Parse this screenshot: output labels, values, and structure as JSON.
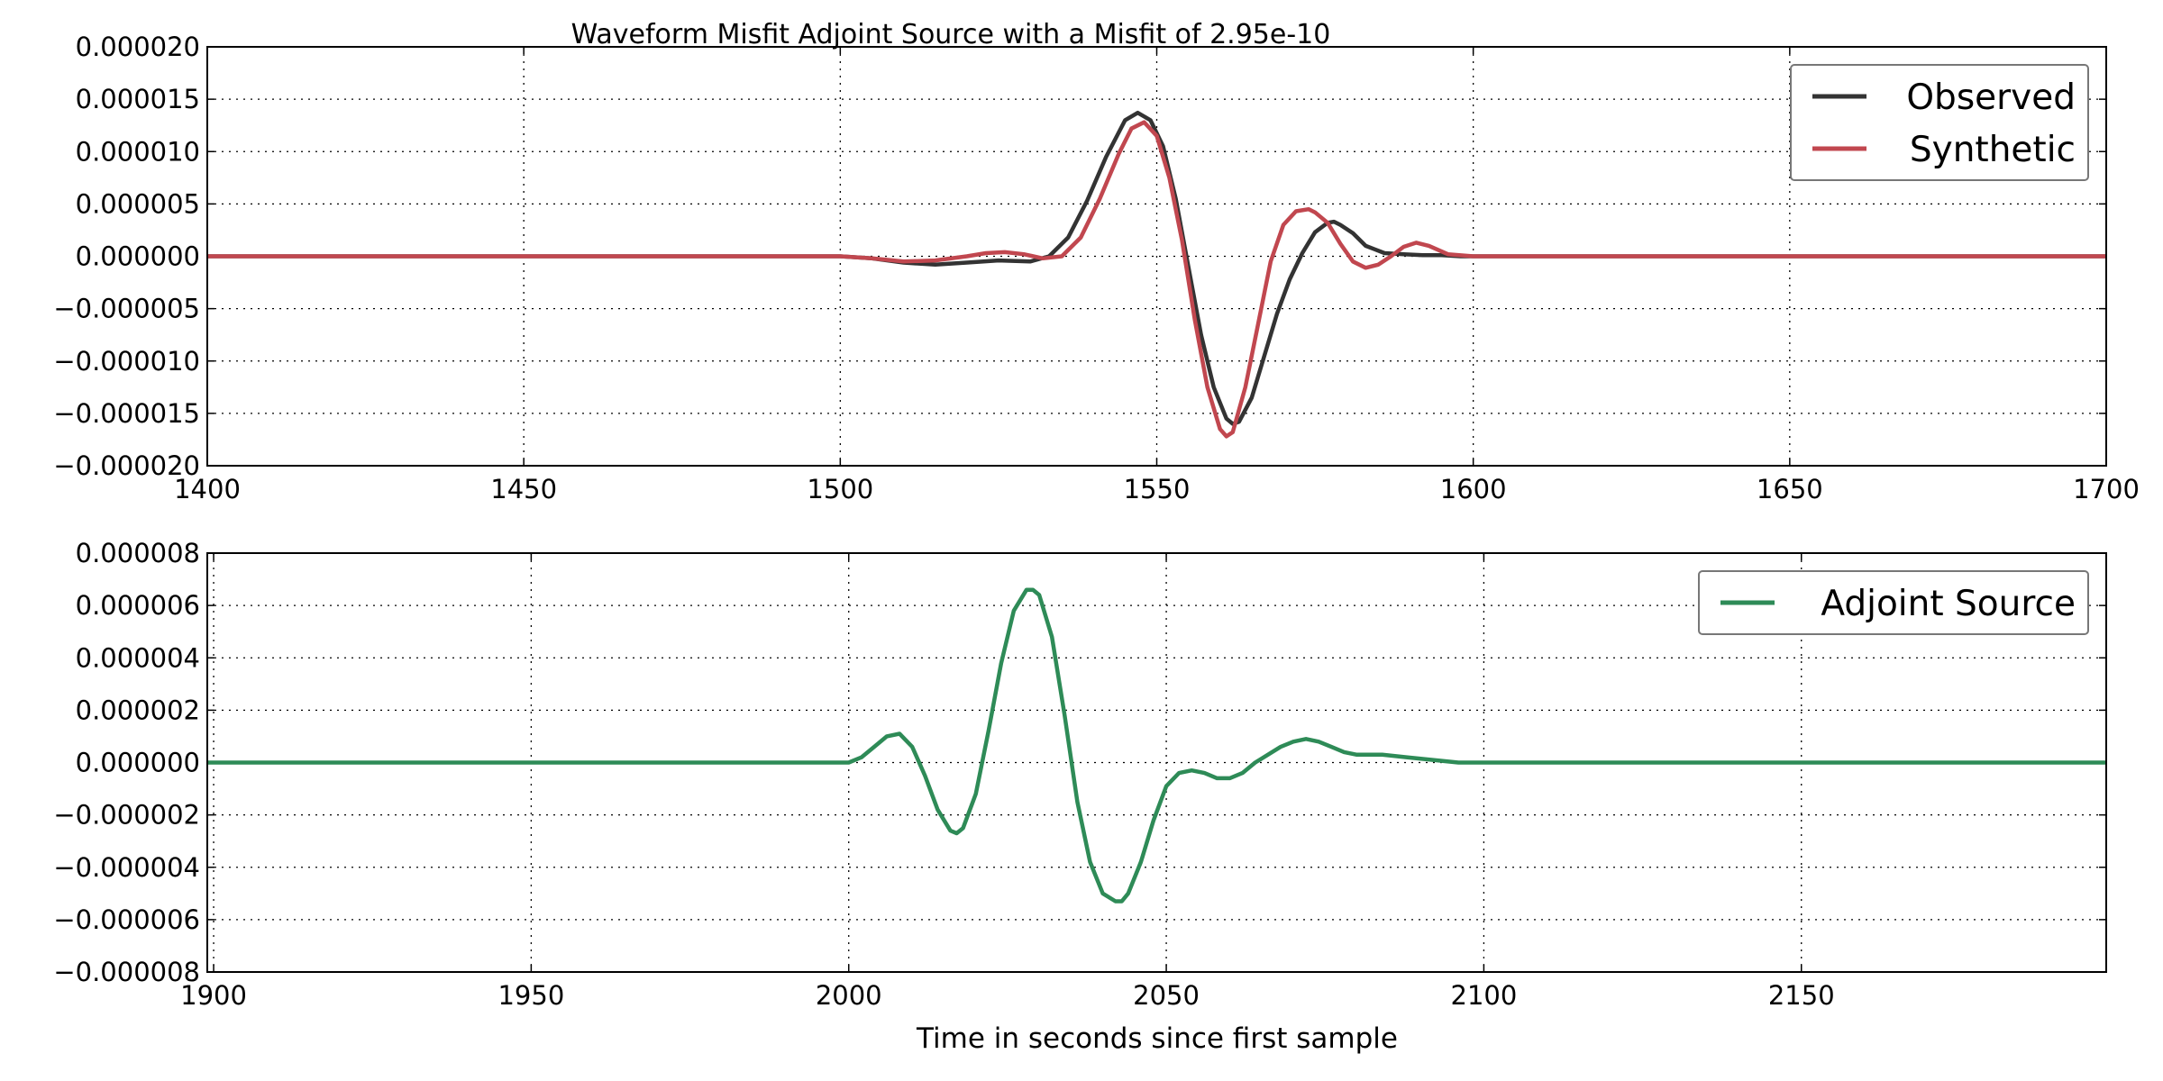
{
  "title": "Waveform Misfit Adjoint Source with a Misfit of 2.95e-10",
  "chart_data": [
    {
      "type": "line",
      "title": "Waveform Misfit Adjoint Source with a Misfit of 2.95e-10",
      "xlabel": "",
      "ylabel": "",
      "xlim": [
        1400,
        1700
      ],
      "ylim": [
        -2e-05,
        2e-05
      ],
      "grid": true,
      "legend_position": "top-right",
      "xticks": [
        1400,
        1450,
        1500,
        1550,
        1600,
        1650,
        1700
      ],
      "xtick_labels": [
        "1400",
        "1450",
        "1500",
        "1550",
        "1600",
        "1650",
        "1700"
      ],
      "yticks": [
        2e-05,
        1.5e-05,
        1e-05,
        5e-06,
        0,
        -5e-06,
        -1e-05,
        -1.5e-05,
        -2e-05
      ],
      "ytick_labels": [
        "0.000020",
        "0.000015",
        "0.000010",
        "0.000005",
        "0.000000",
        "−0.000005",
        "−0.000010",
        "−0.000015",
        "−0.000020"
      ],
      "series": [
        {
          "name": "Observed",
          "color": "#333333",
          "x": [
            1400,
            1500,
            1505,
            1510,
            1515,
            1520,
            1525,
            1530,
            1533,
            1536,
            1539,
            1542,
            1545,
            1547,
            1549,
            1551,
            1553,
            1555,
            1557,
            1559,
            1561,
            1562,
            1563,
            1565,
            1567,
            1569,
            1571,
            1573,
            1575,
            1577,
            1578,
            1579,
            1581,
            1583,
            1586,
            1589,
            1592,
            1595,
            1598,
            1600,
            1700
          ],
          "y": [
            0,
            0,
            -2e-07,
            -6e-07,
            -8e-07,
            -6e-07,
            -4e-07,
            -5e-07,
            0,
            1.8e-06,
            5.3e-06,
            9.5e-06,
            1.3e-05,
            1.37e-05,
            1.3e-05,
            1.05e-05,
            5.5e-06,
            -1e-06,
            -7.5e-06,
            -1.25e-05,
            -1.55e-05,
            -1.6e-05,
            -1.58e-05,
            -1.35e-05,
            -9.5e-06,
            -5.5e-06,
            -2.2e-06,
            3e-07,
            2.3e-06,
            3.2e-06,
            3.3e-06,
            3e-06,
            2.2e-06,
            1e-06,
            3e-07,
            2e-07,
            1e-07,
            1e-07,
            0,
            0,
            0
          ]
        },
        {
          "name": "Synthetic",
          "color": "#c1474f",
          "x": [
            1400,
            1500,
            1505,
            1510,
            1515,
            1520,
            1523,
            1526,
            1529,
            1532,
            1535,
            1538,
            1541,
            1544,
            1546,
            1548,
            1550,
            1552,
            1554,
            1556,
            1558,
            1560,
            1561,
            1562,
            1564,
            1566,
            1568,
            1570,
            1572,
            1574,
            1575,
            1577,
            1579,
            1581,
            1583,
            1585,
            1587,
            1589,
            1591,
            1593,
            1596,
            1600,
            1700
          ],
          "y": [
            0,
            0,
            -2e-07,
            -5e-07,
            -4e-07,
            0,
            3e-07,
            4e-07,
            2e-07,
            -2e-07,
            0,
            1.8e-06,
            5.5e-06,
            9.8e-06,
            1.22e-05,
            1.28e-05,
            1.15e-05,
            7.5e-06,
            1.5e-06,
            -6e-06,
            -1.25e-05,
            -1.65e-05,
            -1.72e-05,
            -1.68e-05,
            -1.25e-05,
            -6.5e-06,
            -5e-07,
            3e-06,
            4.3e-06,
            4.5e-06,
            4.2e-06,
            3.2e-06,
            1.2e-06,
            -5e-07,
            -1.1e-06,
            -8e-07,
            0,
            9e-07,
            1.3e-06,
            1e-06,
            2e-07,
            0,
            0
          ]
        }
      ]
    },
    {
      "type": "line",
      "title": "",
      "xlabel": "Time in seconds since first sample",
      "ylabel": "",
      "xlim": [
        1899,
        2198
      ],
      "ylim": [
        -8e-06,
        8e-06
      ],
      "grid": true,
      "legend_position": "top-right",
      "xticks": [
        1900,
        1950,
        2000,
        2050,
        2100,
        2150
      ],
      "xtick_labels": [
        "1900",
        "1950",
        "2000",
        "2050",
        "2100",
        "2150"
      ],
      "yticks": [
        8e-06,
        6e-06,
        4e-06,
        2e-06,
        0,
        -2e-06,
        -4e-06,
        -6e-06,
        -8e-06
      ],
      "ytick_labels": [
        "0.000008",
        "0.000006",
        "0.000004",
        "0.000002",
        "0.000000",
        "−0.000002",
        "−0.000004",
        "−0.000006",
        "−0.000008"
      ],
      "series": [
        {
          "name": "Adjoint Source",
          "color": "#2e8b57",
          "x": [
            1899,
            2000,
            2002,
            2004,
            2006,
            2008,
            2010,
            2012,
            2014,
            2016,
            2017,
            2018,
            2020,
            2022,
            2024,
            2026,
            2028,
            2029,
            2030,
            2032,
            2034,
            2036,
            2038,
            2040,
            2042,
            2043,
            2044,
            2046,
            2048,
            2050,
            2052,
            2054,
            2056,
            2058,
            2060,
            2062,
            2064,
            2066,
            2068,
            2070,
            2072,
            2074,
            2076,
            2078,
            2080,
            2084,
            2088,
            2092,
            2096,
            2100,
            2198
          ],
          "y": [
            0,
            0,
            2e-07,
            6e-07,
            1e-06,
            1.1e-06,
            6e-07,
            -5e-07,
            -1.8e-06,
            -2.6e-06,
            -2.7e-06,
            -2.5e-06,
            -1.2e-06,
            1.2e-06,
            3.8e-06,
            5.8e-06,
            6.6e-06,
            6.6e-06,
            6.4e-06,
            4.8e-06,
            1.8e-06,
            -1.5e-06,
            -3.8e-06,
            -5e-06,
            -5.3e-06,
            -5.3e-06,
            -5e-06,
            -3.8e-06,
            -2.2e-06,
            -9e-07,
            -4e-07,
            -3e-07,
            -4e-07,
            -6e-07,
            -6e-07,
            -4e-07,
            0,
            3e-07,
            6e-07,
            8e-07,
            9e-07,
            8e-07,
            6e-07,
            4e-07,
            3e-07,
            3e-07,
            2e-07,
            1e-07,
            0,
            0,
            0
          ]
        }
      ]
    }
  ]
}
